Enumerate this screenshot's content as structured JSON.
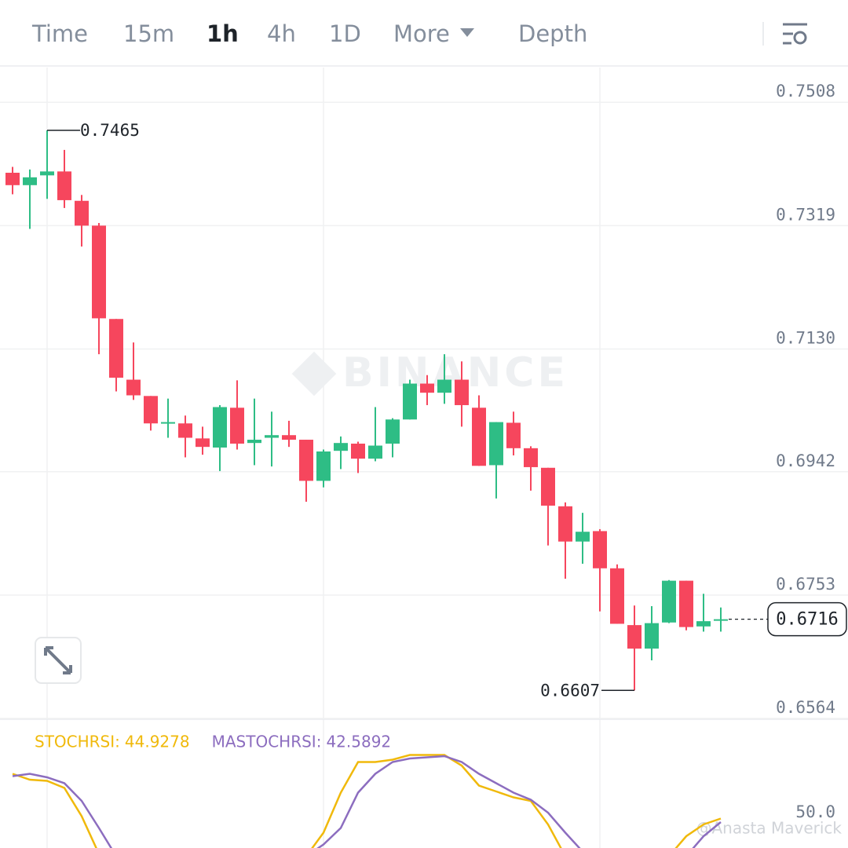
{
  "toolbar": {
    "items": [
      "Time",
      "15m",
      "1h",
      "4h",
      "1D",
      "More",
      "Depth"
    ],
    "active_index": 2
  },
  "watermark": "BINANCE",
  "credit": "@Anasta Maverick",
  "chart_data": {
    "type": "candlestick",
    "open": [
      0.74,
      0.7381,
      0.7396,
      0.7402,
      0.7357,
      0.7319,
      0.7176,
      0.7083,
      0.7058,
      0.7016,
      0.7016,
      0.6993,
      0.6979,
      0.704,
      0.6986,
      0.6994,
      0.6998,
      0.6991,
      0.6928,
      0.6974,
      0.6985,
      0.6962,
      0.6985,
      0.7022,
      0.7077,
      0.7063,
      0.7083,
      0.704,
      0.6952,
      0.7017,
      0.6978,
      0.6948,
      0.6889,
      0.6835,
      0.6851,
      0.6794,
      0.6707,
      0.6671,
      0.6711,
      0.6775,
      0.6705,
      0.6715
    ],
    "high": [
      0.7409,
      0.7405,
      0.7465,
      0.7435,
      0.7366,
      0.7323,
      0.7176,
      0.714,
      0.7058,
      0.7054,
      0.7028,
      0.7011,
      0.7044,
      0.7082,
      0.7054,
      0.7034,
      0.702,
      0.6991,
      0.6976,
      0.6996,
      0.6988,
      0.7041,
      0.7024,
      0.7083,
      0.709,
      0.7122,
      0.7111,
      0.7059,
      0.7018,
      0.7034,
      0.6981,
      0.6948,
      0.6895,
      0.6879,
      0.6854,
      0.68,
      0.6737,
      0.6736,
      0.6776,
      0.6775,
      0.6755,
      0.6734
    ],
    "low": [
      0.7367,
      0.7314,
      0.736,
      0.7346,
      0.7287,
      0.7122,
      0.7065,
      0.7052,
      0.7005,
      0.6994,
      0.6964,
      0.6968,
      0.6943,
      0.6976,
      0.6952,
      0.695,
      0.698,
      0.6896,
      0.6918,
      0.6946,
      0.694,
      0.6958,
      0.6964,
      0.7022,
      0.7044,
      0.7046,
      0.7011,
      0.6951,
      0.6901,
      0.6967,
      0.6913,
      0.6829,
      0.6778,
      0.6801,
      0.6728,
      0.6709,
      0.6607,
      0.6653,
      0.671,
      0.6699,
      0.6697,
      0.6697
    ],
    "close": [
      0.7381,
      0.7393,
      0.7402,
      0.7358,
      0.7319,
      0.7177,
      0.7086,
      0.7059,
      0.7016,
      0.7018,
      0.6994,
      0.698,
      0.7041,
      0.6985,
      0.6991,
      0.6998,
      0.6991,
      0.6928,
      0.6973,
      0.6986,
      0.6962,
      0.6982,
      0.7022,
      0.7077,
      0.7063,
      0.7083,
      0.7044,
      0.6951,
      0.7018,
      0.6978,
      0.6949,
      0.689,
      0.6835,
      0.685,
      0.6794,
      0.6709,
      0.6671,
      0.671,
      0.6775,
      0.6704,
      0.6713,
      0.6716
    ],
    "up_color": "#2ebd85",
    "down_color": "#f6465d",
    "ylim": [
      0.6564,
      0.756
    ],
    "yticks": [
      0.7508,
      0.7319,
      {
        "value": 0.713,
        "label": "0.7130"
      },
      0.6942,
      0.6753,
      0.6564
    ],
    "grid": true
  },
  "indicator": {
    "type": "line",
    "series": [
      {
        "name": "STOCHRSI:",
        "value": 44.9278,
        "color": "#f0b90b",
        "values": [
          83,
          78,
          77,
          71,
          47,
          15,
          null,
          null,
          null,
          null,
          null,
          null,
          null,
          null,
          null,
          null,
          null,
          13,
          33,
          67,
          93,
          93,
          95,
          99,
          99,
          99,
          90,
          73,
          68,
          63,
          60,
          40,
          13,
          null,
          null,
          null,
          null,
          null,
          13,
          30,
          40,
          45
        ]
      },
      {
        "name": "MASTOCHRSI:",
        "value": 42.5892,
        "color": "#8c6dbf",
        "values": [
          81,
          83,
          80,
          75,
          60,
          37,
          13,
          null,
          null,
          null,
          null,
          null,
          null,
          null,
          null,
          null,
          null,
          13,
          23,
          37,
          67,
          83,
          93,
          96,
          97,
          98,
          93,
          83,
          75,
          67,
          61,
          50,
          33,
          17,
          null,
          null,
          null,
          null,
          null,
          13,
          30,
          42
        ]
      }
    ],
    "ylim": [
      20,
      100
    ],
    "yticks": [
      {
        "value": 50,
        "label": "50.0"
      }
    ]
  }
}
